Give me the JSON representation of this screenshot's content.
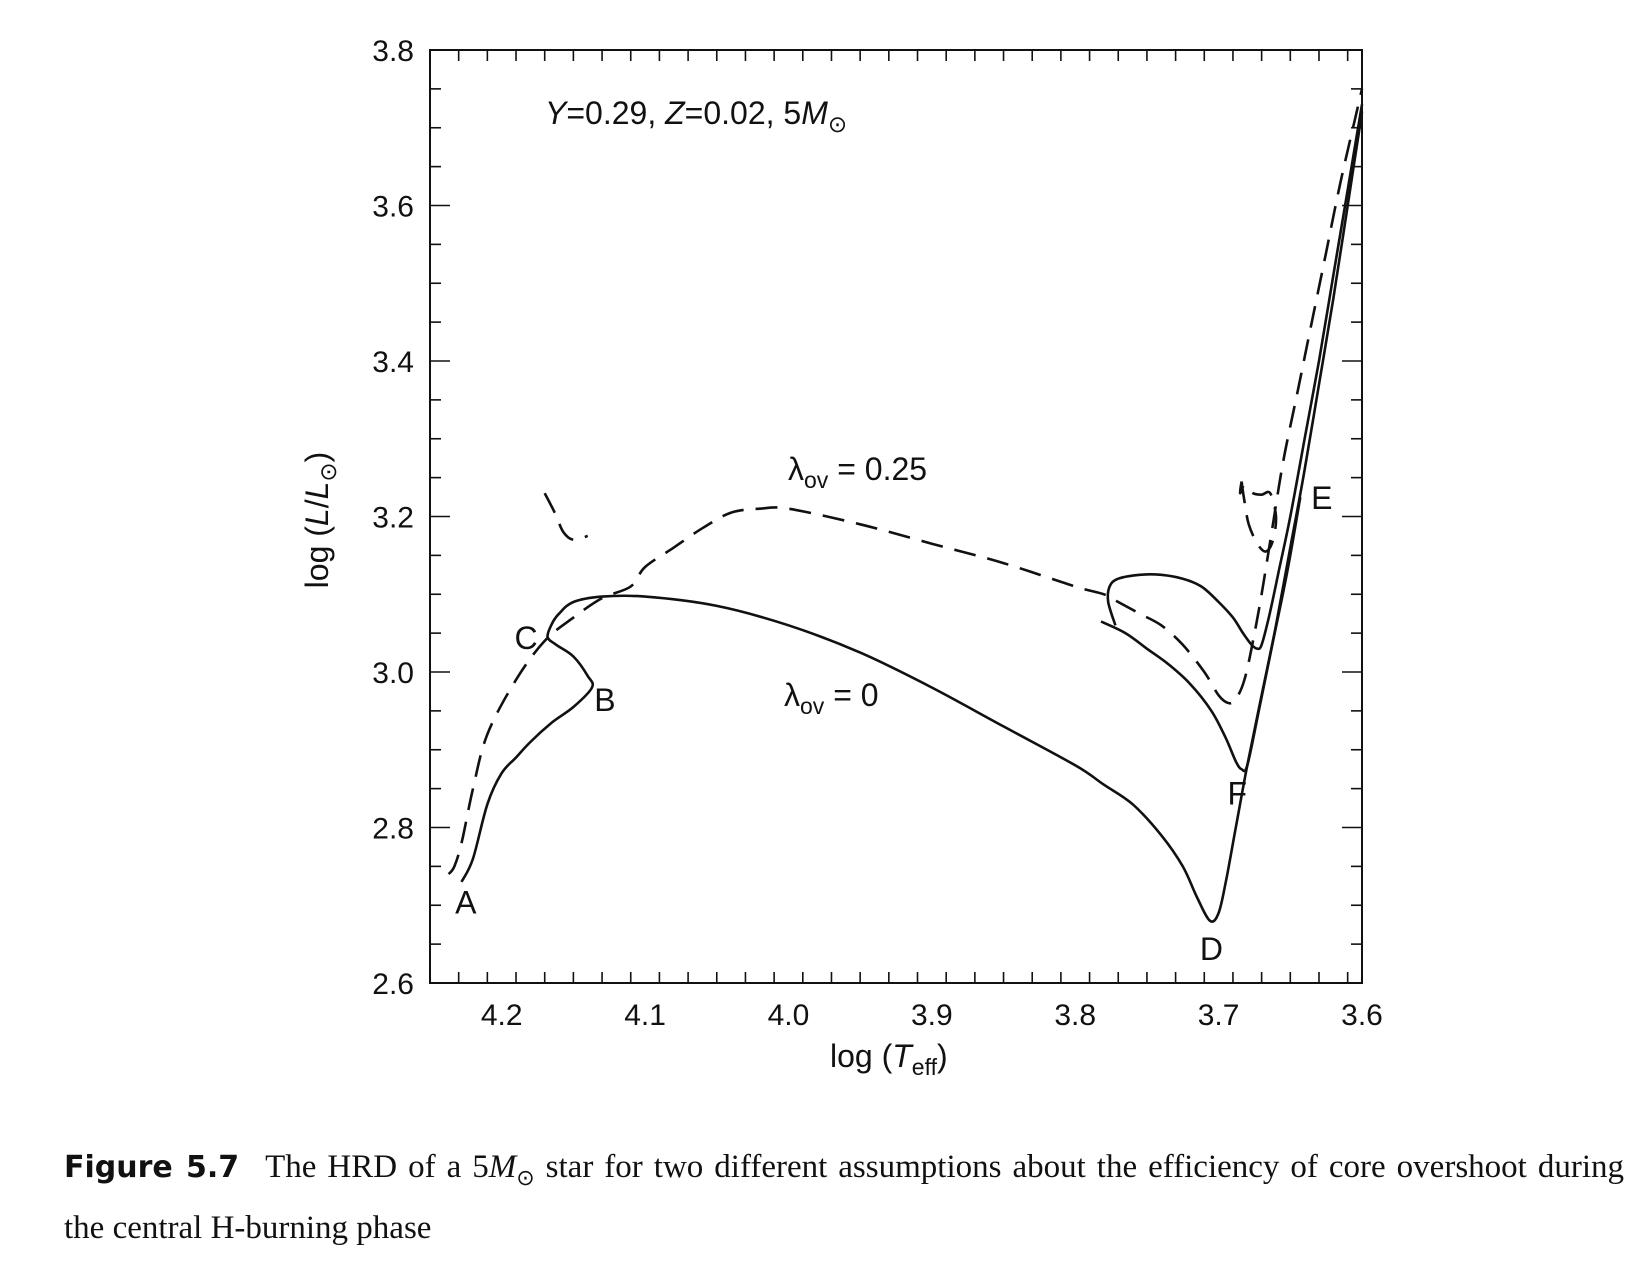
{
  "chart_data": {
    "type": "line",
    "title": "",
    "xlabel": "log (T_eff)",
    "ylabel": "log (L/L_⊙)",
    "xlim": [
      4.25,
      3.6
    ],
    "ylim": [
      2.6,
      3.8
    ],
    "x_reversed": true,
    "x_ticks": [
      "4.2",
      "4.1",
      "4.0",
      "3.9",
      "3.8",
      "3.7",
      "3.6"
    ],
    "y_ticks": [
      "2.6",
      "2.8",
      "3.0",
      "3.2",
      "3.4",
      "3.6",
      "3.8"
    ],
    "grid": false,
    "annotation_params": {
      "Y": "Y = 0.29",
      "Z": "Z = 0.02",
      "mass": "5M"
    },
    "series": [
      {
        "name": "λov = 0",
        "style": "solid",
        "x": [
          4.228,
          4.22,
          4.21,
          4.2,
          4.19,
          4.18,
          4.165,
          4.15,
          4.137,
          4.14,
          4.15,
          4.162,
          4.168,
          4.165,
          4.16,
          4.15,
          4.13,
          4.1,
          4.05,
          4.0,
          3.95,
          3.9,
          3.85,
          3.8,
          3.78,
          3.76,
          3.74,
          3.725,
          3.715,
          3.706,
          3.7,
          3.695,
          3.688,
          3.68,
          3.67,
          3.66,
          3.65,
          3.64,
          3.63,
          3.62,
          3.61,
          3.6
        ],
        "y": [
          2.73,
          2.76,
          2.83,
          2.87,
          2.89,
          2.91,
          2.935,
          2.955,
          2.98,
          2.995,
          3.02,
          3.035,
          3.045,
          3.062,
          3.075,
          3.09,
          3.097,
          3.097,
          3.085,
          3.06,
          3.025,
          2.98,
          2.93,
          2.88,
          2.855,
          2.83,
          2.79,
          2.75,
          2.71,
          2.68,
          2.69,
          2.73,
          2.8,
          2.88,
          2.97,
          3.06,
          3.16,
          3.26,
          3.37,
          3.48,
          3.6,
          3.72
        ]
      },
      {
        "name": "λov = 0 (giant branch)",
        "style": "solid",
        "x": [
          3.782,
          3.765,
          3.75,
          3.735,
          3.72,
          3.705,
          3.695,
          3.688,
          3.684,
          3.68,
          3.672,
          3.662,
          3.652,
          3.643
        ],
        "y": [
          3.065,
          3.05,
          3.03,
          3.01,
          2.985,
          2.95,
          2.915,
          2.885,
          2.875,
          2.88,
          2.95,
          3.04,
          3.13,
          3.225
        ]
      },
      {
        "name": "λov = 0 (blue loop)",
        "style": "solid",
        "x": [
          3.772,
          3.777,
          3.776,
          3.77,
          3.755,
          3.74,
          3.725,
          3.712,
          3.7,
          3.69,
          3.683,
          3.677,
          3.673,
          3.67,
          3.665,
          3.658,
          3.65,
          3.64,
          3.63,
          3.62,
          3.61,
          3.6
        ],
        "y": [
          3.06,
          3.09,
          3.11,
          3.12,
          3.125,
          3.125,
          3.12,
          3.11,
          3.09,
          3.07,
          3.05,
          3.035,
          3.03,
          3.035,
          3.07,
          3.13,
          3.2,
          3.3,
          3.4,
          3.51,
          3.62,
          3.73
        ]
      },
      {
        "name": "λov = 0.25",
        "style": "dashed",
        "x": [
          4.237,
          4.233,
          4.228,
          4.22,
          4.21,
          4.19,
          4.17,
          4.15,
          4.13,
          4.11,
          4.1,
          4.08,
          4.06,
          4.04,
          4.02,
          4.0,
          3.95,
          3.9,
          3.85,
          3.8,
          3.78,
          3.77,
          3.755,
          3.74,
          3.725,
          3.71,
          3.7,
          3.693,
          3.688,
          3.682,
          3.676,
          3.67,
          3.663,
          3.655,
          3.645,
          3.635,
          3.625,
          3.615,
          3.605,
          3.6
        ],
        "y": [
          2.74,
          2.75,
          2.78,
          2.85,
          2.92,
          2.99,
          3.04,
          3.07,
          3.095,
          3.11,
          3.135,
          3.16,
          3.185,
          3.205,
          3.21,
          3.21,
          3.19,
          3.165,
          3.14,
          3.11,
          3.1,
          3.09,
          3.075,
          3.06,
          3.035,
          3.0,
          2.97,
          2.96,
          2.965,
          2.99,
          3.04,
          3.1,
          3.18,
          3.27,
          3.36,
          3.45,
          3.54,
          3.63,
          3.71,
          3.75
        ]
      },
      {
        "name": "λov = 0.25 (hook)",
        "style": "dashed",
        "x": [
          4.17,
          4.163,
          4.157,
          4.15,
          4.14
        ],
        "y": [
          3.23,
          3.205,
          3.18,
          3.17,
          3.175
        ]
      },
      {
        "name": "λov = 0.25 (loop)",
        "style": "dashed",
        "x": [
          3.684,
          3.682,
          3.679,
          3.673,
          3.667,
          3.662,
          3.66,
          3.664,
          3.67,
          3.676,
          3.682,
          3.685,
          3.684
        ],
        "y": [
          3.245,
          3.22,
          3.19,
          3.165,
          3.155,
          3.17,
          3.2,
          3.23,
          3.228,
          3.23,
          3.24,
          3.23,
          3.245
        ]
      }
    ],
    "point_labels": [
      {
        "label": "A",
        "x": 4.225,
        "y": 2.705
      },
      {
        "label": "B",
        "x": 4.128,
        "y": 2.965
      },
      {
        "label": "C",
        "x": 4.183,
        "y": 3.045
      },
      {
        "label": "D",
        "x": 3.705,
        "y": 2.645
      },
      {
        "label": "E",
        "x": 3.628,
        "y": 3.225
      },
      {
        "label": "F",
        "x": 3.687,
        "y": 2.845
      }
    ],
    "series_labels": [
      {
        "text": "λov = 0.25",
        "x": 4.02,
        "y": 3.245
      },
      {
        "text": "λov = 0",
        "x": 4.02,
        "y": 2.955
      }
    ]
  },
  "caption": {
    "figure_label": "Figure 5.7",
    "text_before": "The HRD of a 5",
    "text_after": " star for two different assumptions about the efficiency of core overshoot during the central H-burning phase"
  }
}
